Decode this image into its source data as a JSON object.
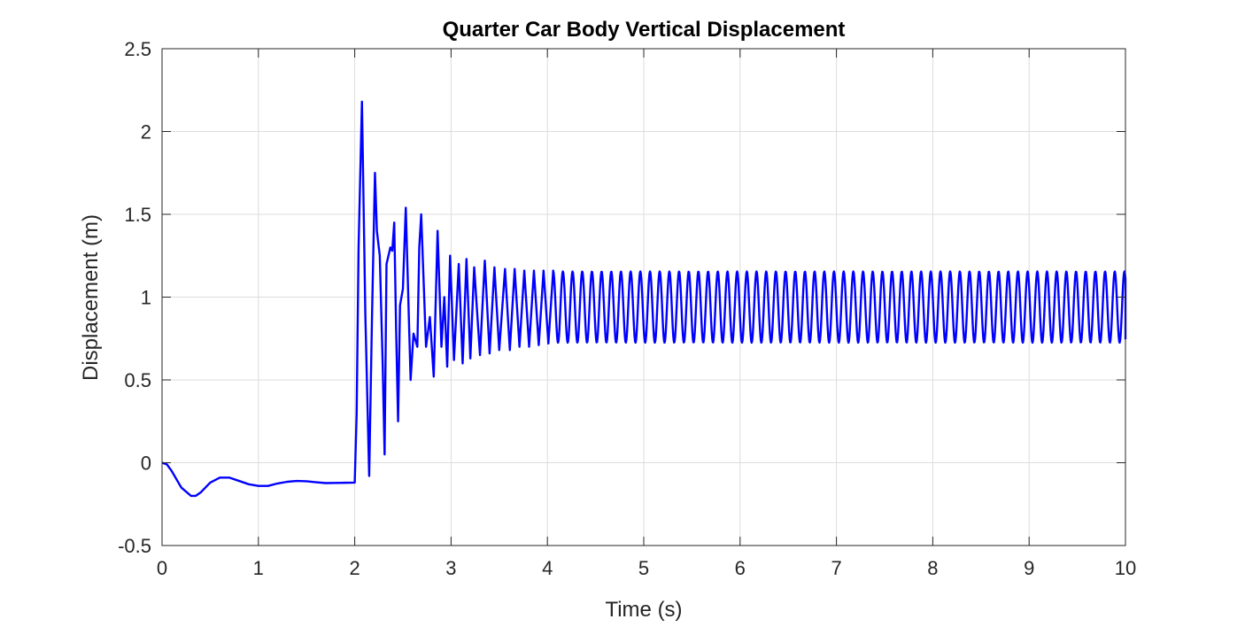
{
  "colors": {
    "series": "#0000ff",
    "grid": "#dcdcdc",
    "axis": "#262626",
    "background": "#ffffff"
  },
  "chart_data": {
    "type": "line",
    "title": "Quarter Car Body Vertical Displacement",
    "xlabel": "Time (s)",
    "ylabel": "Displacement (m)",
    "xlim": [
      0,
      10
    ],
    "ylim": [
      -0.5,
      2.5
    ],
    "xticks": [
      0,
      1,
      2,
      3,
      4,
      5,
      6,
      7,
      8,
      9,
      10
    ],
    "xtick_labels": [
      "0",
      "1",
      "2",
      "3",
      "4",
      "5",
      "6",
      "7",
      "8",
      "9",
      "10"
    ],
    "yticks": [
      -0.5,
      0,
      0.5,
      1,
      1.5,
      2,
      2.5
    ],
    "ytick_labels": [
      "-0.5",
      "0",
      "0.5",
      "1",
      "1.5",
      "2",
      "2.5"
    ],
    "grid": true,
    "box": true,
    "legend": false,
    "series": [
      {
        "color": "#0000ff",
        "x": [
          0,
          0.05,
          0.1,
          0.2,
          0.3,
          0.35,
          0.4,
          0.5,
          0.6,
          0.7,
          0.8,
          0.9,
          1.0,
          1.1,
          1.2,
          1.3,
          1.4,
          1.5,
          1.6,
          1.7,
          1.8,
          1.9,
          2.0,
          2.02,
          2.04,
          2.075,
          2.11,
          2.15,
          2.18,
          2.21,
          2.23,
          2.26,
          2.29,
          2.31,
          2.33,
          2.37,
          2.39,
          2.41,
          2.43,
          2.45,
          2.47,
          2.5,
          2.53,
          2.58,
          2.61,
          2.65,
          2.67,
          2.69,
          2.74,
          2.78,
          2.82,
          2.86,
          2.9,
          2.93,
          2.96,
          2.99,
          3.03,
          3.08,
          3.12,
          3.16,
          3.2,
          3.24,
          3.3,
          3.35,
          3.4,
          3.45,
          3.5,
          3.56,
          3.61,
          3.66,
          3.71,
          3.76,
          3.81,
          3.86,
          3.91,
          3.96,
          4.01,
          4.06
        ],
        "y": [
          0,
          -0.01,
          -0.05,
          -0.15,
          -0.2,
          -0.2,
          -0.18,
          -0.12,
          -0.09,
          -0.09,
          -0.11,
          -0.13,
          -0.14,
          -0.14,
          -0.125,
          -0.115,
          -0.11,
          -0.112,
          -0.118,
          -0.123,
          -0.122,
          -0.121,
          -0.12,
          0.3,
          1.3,
          2.18,
          0.9,
          -0.08,
          0.9,
          1.75,
          1.4,
          1.25,
          0.6,
          0.05,
          1.2,
          1.3,
          1.28,
          1.45,
          0.8,
          0.25,
          0.95,
          1.05,
          1.54,
          0.5,
          0.78,
          0.7,
          1.3,
          1.5,
          0.7,
          0.88,
          0.52,
          1.4,
          0.7,
          1.0,
          0.58,
          1.25,
          0.62,
          1.2,
          0.6,
          1.23,
          0.63,
          1.18,
          0.65,
          1.22,
          0.66,
          1.18,
          0.68,
          1.17,
          0.68,
          1.17,
          0.7,
          1.16,
          0.7,
          1.16,
          0.71,
          1.16,
          0.72,
          1.16
        ]
      }
    ],
    "steady_state": {
      "x_start": 4.06,
      "x_end": 10.0,
      "period": 0.1005,
      "max": 1.155,
      "min": 0.725,
      "end_value": 0.745
    }
  }
}
